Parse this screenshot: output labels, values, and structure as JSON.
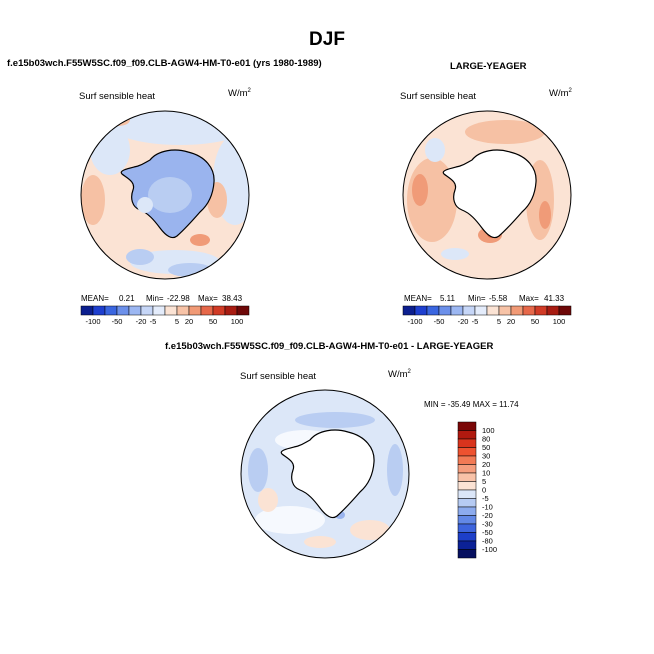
{
  "main_title": "DJF",
  "panels": [
    {
      "title": "f.e15b03wch.F55W5SC.f09_f09.CLB-AGW4-HM-T0-e01 (yrs 1980-1989)",
      "variable": "Surf sensible heat",
      "units": "W/m",
      "units_exp": "2",
      "stats": {
        "mean_label": "MEAN=",
        "mean": "0.21",
        "min_label": "Min=",
        "min": "-22.98",
        "max_label": "Max=",
        "max": "38.43"
      }
    },
    {
      "title": "LARGE-YEAGER",
      "variable": "Surf sensible heat",
      "units": "W/m",
      "units_exp": "2",
      "stats": {
        "mean_label": "MEAN=",
        "mean": "5.11",
        "min_label": "Min=",
        "min": "-5.58",
        "max_label": "Max=",
        "max": "41.33"
      }
    },
    {
      "title": "f.e15b03wch.F55W5SC.f09_f09.CLB-AGW4-HM-T0-e01 - LARGE-YEAGER",
      "variable": "Surf sensible heat",
      "units": "W/m",
      "units_exp": "2",
      "stats_line": "MIN = -35.49 MAX = 11.74"
    }
  ],
  "colorbar_abs": {
    "labels": [
      "-100",
      "-50",
      "-20",
      "-5",
      "5",
      "20",
      "50",
      "100"
    ],
    "colors": [
      "#0c1f8f",
      "#1e3fcf",
      "#3a66e0",
      "#6c90ea",
      "#9cb7f2",
      "#c6d6f7",
      "#e4ecfb",
      "#fbe3d4",
      "#f7c3a7",
      "#f19a76",
      "#e6684a",
      "#d13b26",
      "#a81c12",
      "#6e0808"
    ]
  },
  "colorbar_diff": {
    "labels": [
      "100",
      "80",
      "50",
      "30",
      "20",
      "10",
      "5",
      "0",
      "-5",
      "-10",
      "-20",
      "-30",
      "-50",
      "-80",
      "-100"
    ],
    "colors": [
      "#7a0606",
      "#b0190f",
      "#d9341d",
      "#ee5230",
      "#f27a55",
      "#f59e7e",
      "#f8c2a8",
      "#fce3d4",
      "#dbe6f8",
      "#b6cbf3",
      "#8cabee",
      "#6288e6",
      "#3d64dd",
      "#1d3fc9",
      "#0b2196",
      "#061060"
    ]
  },
  "map_colors": {
    "land": "#ffffff",
    "outline": "#000000",
    "neutral": "#f6f9fe",
    "light_blue": "#dce7f8",
    "mid_blue": "#b9cdf2",
    "blue": "#9ab4ee",
    "light_red": "#fbe3d4",
    "mid_red": "#f6c1a4",
    "red": "#f09b78",
    "dark_red": "#e26a4a"
  }
}
